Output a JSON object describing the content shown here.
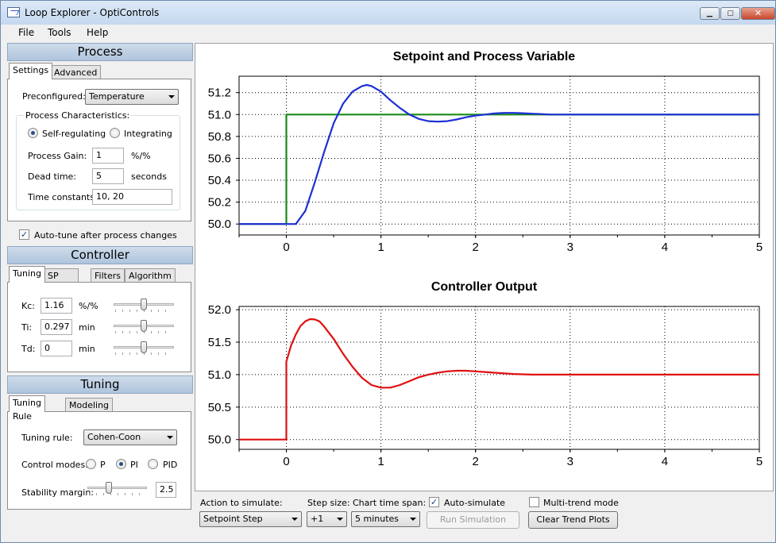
{
  "window": {
    "title": "Loop Explorer - OptiControls"
  },
  "menu": [
    "File",
    "Tools",
    "Help"
  ],
  "process": {
    "header": "Process",
    "tabs": [
      "Settings",
      "Advanced"
    ],
    "preconfigured_label": "Preconfigured:",
    "preconfigured_value": "Temperature",
    "characteristics_label": "Process Characteristics:",
    "self_regulating": "Self-regulating",
    "integrating": "Integrating",
    "gain_label": "Process Gain:",
    "gain_value": "1",
    "gain_unit": "%/%",
    "dead_time_label": "Dead time:",
    "dead_time_value": "5",
    "dead_time_unit": "seconds",
    "time_constants_label": "Time constants:",
    "time_constants_value": "10, 20",
    "autotune_label": "Auto-tune after process changes"
  },
  "controller": {
    "header": "Controller",
    "tabs": [
      "Tuning",
      "SP Action",
      "Filters",
      "Algorithm"
    ],
    "kc_label": "Kc:",
    "kc_value": "1.16",
    "kc_unit": "%/%",
    "ti_label": "Ti:",
    "ti_value": "0.297",
    "ti_unit": "min",
    "td_label": "Td:",
    "td_value": "0",
    "td_unit": "min",
    "kc_slider": 0.5,
    "ti_slider": 0.5,
    "td_slider": 0.5
  },
  "tuning": {
    "header": "Tuning",
    "tabs": [
      "Tuning Rule",
      "Modeling"
    ],
    "rule_label": "Tuning rule:",
    "rule_value": "Cohen-Coon",
    "modes_label": "Control modes:",
    "mode_p": "P",
    "mode_pi": "PI",
    "mode_pid": "PID",
    "margin_label": "Stability margin:",
    "margin_value": "2.5",
    "margin_slider": 0.35
  },
  "bottom": {
    "action_label": "Action to simulate:",
    "action_value": "Setpoint Step",
    "step_label": "Step size:",
    "step_value": "+1",
    "span_label": "Chart time span:",
    "span_value": "5 minutes",
    "auto_label": "Auto-simulate",
    "multi_label": "Multi-trend mode",
    "run_button": "Run Simulation",
    "clear_button": "Clear Trend Plots"
  },
  "chart_data": [
    {
      "type": "line",
      "title": "Setpoint and Process Variable",
      "xlim": [
        -0.5,
        5
      ],
      "ylim": [
        49.9,
        51.35
      ],
      "xticks": [
        "0",
        "1",
        "2",
        "3",
        "4",
        "5"
      ],
      "yticks": [
        "50.0",
        "50.2",
        "50.4",
        "50.6",
        "50.8",
        "51.0",
        "51.2"
      ],
      "grid": true,
      "series": [
        {
          "color": "#1a8a1a",
          "x": [
            -0.5,
            0,
            0,
            5
          ],
          "y": [
            50.0,
            50.0,
            51.0,
            51.0
          ]
        },
        {
          "color": "#1c2fd6",
          "x": [
            -0.5,
            0.1,
            0.2,
            0.3,
            0.4,
            0.5,
            0.6,
            0.7,
            0.8,
            0.85,
            0.9,
            1.0,
            1.1,
            1.2,
            1.3,
            1.4,
            1.5,
            1.6,
            1.7,
            1.8,
            1.9,
            2.0,
            2.1,
            2.2,
            2.3,
            2.4,
            2.5,
            2.6,
            2.7,
            2.8,
            3.0,
            3.5,
            4.0,
            5.0
          ],
          "y": [
            50.0,
            50.0,
            50.12,
            50.38,
            50.66,
            50.92,
            51.1,
            51.21,
            51.26,
            51.27,
            51.26,
            51.21,
            51.13,
            51.06,
            51.0,
            50.96,
            50.94,
            50.935,
            50.94,
            50.955,
            50.975,
            50.99,
            51.0,
            51.01,
            51.015,
            51.015,
            51.012,
            51.008,
            51.004,
            51.0,
            51.0,
            51.0,
            51.0,
            51.0
          ]
        }
      ]
    },
    {
      "type": "line",
      "title": "Controller Output",
      "xlim": [
        -0.5,
        5
      ],
      "ylim": [
        49.85,
        52.05
      ],
      "xticks": [
        "0",
        "1",
        "2",
        "3",
        "4",
        "5"
      ],
      "yticks": [
        "50.0",
        "50.5",
        "51.0",
        "51.5",
        "52.0"
      ],
      "grid": true,
      "series": [
        {
          "color": "#e01010",
          "x": [
            -0.5,
            0,
            0,
            0.05,
            0.1,
            0.15,
            0.2,
            0.25,
            0.3,
            0.35,
            0.4,
            0.5,
            0.6,
            0.7,
            0.8,
            0.9,
            1.0,
            1.1,
            1.2,
            1.3,
            1.4,
            1.5,
            1.6,
            1.7,
            1.8,
            1.9,
            2.0,
            2.1,
            2.2,
            2.4,
            2.6,
            2.8,
            3.0,
            3.5,
            4.0,
            5.0
          ],
          "y": [
            50.0,
            50.0,
            51.2,
            51.45,
            51.62,
            51.75,
            51.82,
            51.855,
            51.85,
            51.82,
            51.74,
            51.55,
            51.32,
            51.12,
            50.95,
            50.84,
            50.8,
            50.8,
            50.84,
            50.9,
            50.96,
            51.0,
            51.03,
            51.05,
            51.06,
            51.06,
            51.05,
            51.04,
            51.03,
            51.01,
            51.0,
            51.0,
            51.0,
            51.0,
            51.0,
            51.0
          ]
        }
      ]
    }
  ]
}
